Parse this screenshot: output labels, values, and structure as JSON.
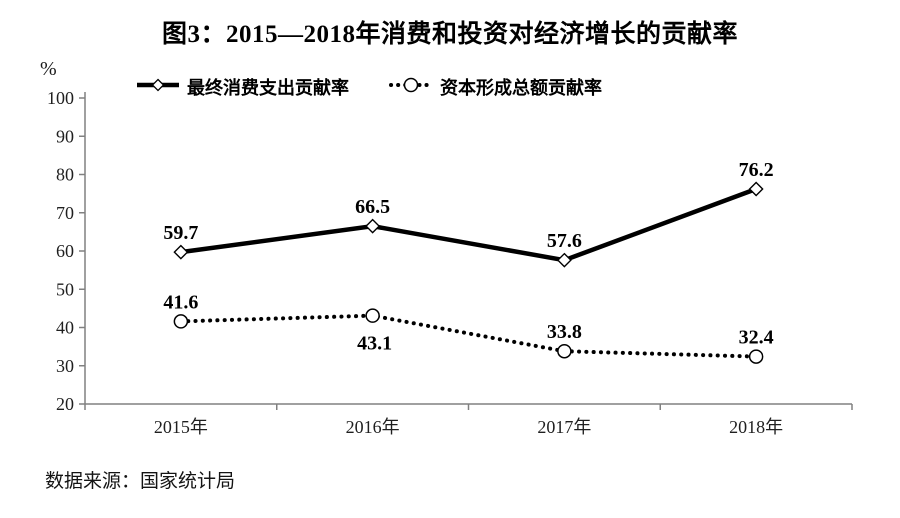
{
  "title": "图3：2015—2018年消费和投资对经济增长的贡献率",
  "y_axis_unit": "%",
  "source_note": "数据来源：国家统计局",
  "legend": [
    {
      "label": "最终消费支出贡献率",
      "marker": "solid-line-diamond-icon"
    },
    {
      "label": "资本形成总额贡献率",
      "marker": "dotted-line-circle-icon"
    }
  ],
  "chart_data": {
    "type": "line",
    "categories": [
      "2015年",
      "2016年",
      "2017年",
      "2018年"
    ],
    "series": [
      {
        "name": "最终消费支出贡献率",
        "values": [
          59.7,
          66.5,
          57.6,
          76.2
        ],
        "line_style": "solid",
        "marker": "diamond",
        "label_position": [
          "above",
          "above",
          "above",
          "above"
        ]
      },
      {
        "name": "资本形成总额贡献率",
        "values": [
          41.6,
          43.1,
          33.8,
          32.4
        ],
        "line_style": "dotted",
        "marker": "circle",
        "label_position": [
          "above",
          "below",
          "above",
          "above"
        ]
      }
    ],
    "ylim": [
      20,
      100
    ],
    "ytick_step": 10,
    "grid": false,
    "legend_position": "top-left",
    "colors": {
      "line": "#000000",
      "marker_fill": "#ffffff",
      "axis": "#808080",
      "text": "#000000"
    }
  }
}
